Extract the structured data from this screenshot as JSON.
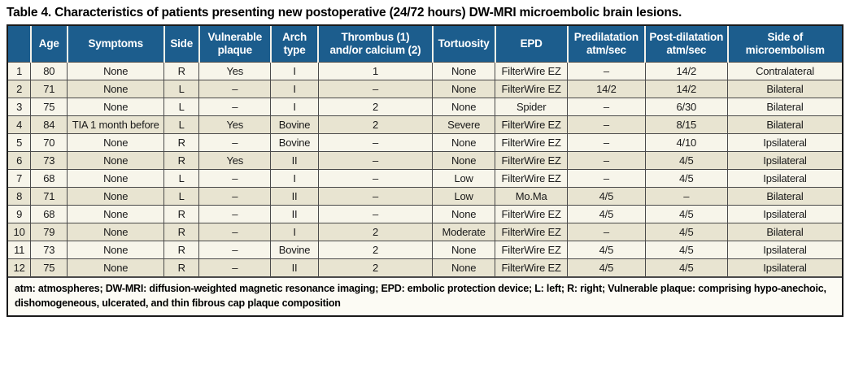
{
  "title": "Table 4. Characteristics of patients presenting new postoperative (24/72 hours) DW-MRI microembolic brain lesions.",
  "colors": {
    "header_bg": "#1c5d8d",
    "header_text": "#ffffff",
    "row_odd": "#f7f5ea",
    "row_even": "#e8e4d1",
    "grid": "#4a4a4a",
    "outer_border": "#1a1a1a"
  },
  "table": {
    "columns": [
      {
        "key": "row-number",
        "label": ""
      },
      {
        "key": "age",
        "label": "Age"
      },
      {
        "key": "symptoms",
        "label": "Symptoms"
      },
      {
        "key": "side",
        "label": "Side"
      },
      {
        "key": "vulnerable-plaque",
        "label": "Vulnerable\nplaque"
      },
      {
        "key": "arch-type",
        "label": "Arch\ntype"
      },
      {
        "key": "thrombus-calcium",
        "label": "Thrombus (1)\nand/or calcium (2)"
      },
      {
        "key": "tortuosity",
        "label": "Tortuosity"
      },
      {
        "key": "epd",
        "label": "EPD"
      },
      {
        "key": "predilatation",
        "label": "Predilatation\natm/sec"
      },
      {
        "key": "post-dilatation",
        "label": "Post-dilatation\natm/sec"
      },
      {
        "key": "side-of-microembolism",
        "label": "Side of\nmicroembolism"
      }
    ],
    "rows": [
      [
        "1",
        "80",
        "None",
        "R",
        "Yes",
        "I",
        "1",
        "None",
        "FilterWire EZ",
        "–",
        "14/2",
        "Contralateral"
      ],
      [
        "2",
        "71",
        "None",
        "L",
        "–",
        "I",
        "–",
        "None",
        "FilterWire EZ",
        "14/2",
        "14/2",
        "Bilateral"
      ],
      [
        "3",
        "75",
        "None",
        "L",
        "–",
        "I",
        "2",
        "None",
        "Spider",
        "–",
        "6/30",
        "Bilateral"
      ],
      [
        "4",
        "84",
        "TIA 1 month before",
        "L",
        "Yes",
        "Bovine",
        "2",
        "Severe",
        "FilterWire EZ",
        "–",
        "8/15",
        "Bilateral"
      ],
      [
        "5",
        "70",
        "None",
        "R",
        "–",
        "Bovine",
        "–",
        "None",
        "FilterWire EZ",
        "–",
        "4/10",
        "Ipsilateral"
      ],
      [
        "6",
        "73",
        "None",
        "R",
        "Yes",
        "II",
        "–",
        "None",
        "FilterWire EZ",
        "–",
        "4/5",
        "Ipsilateral"
      ],
      [
        "7",
        "68",
        "None",
        "L",
        "–",
        "I",
        "–",
        "Low",
        "FilterWire EZ",
        "–",
        "4/5",
        "Ipsilateral"
      ],
      [
        "8",
        "71",
        "None",
        "L",
        "–",
        "II",
        "–",
        "Low",
        "Mo.Ma",
        "4/5",
        "–",
        "Bilateral"
      ],
      [
        "9",
        "68",
        "None",
        "R",
        "–",
        "II",
        "–",
        "None",
        "FilterWire EZ",
        "4/5",
        "4/5",
        "Ipsilateral"
      ],
      [
        "10",
        "79",
        "None",
        "R",
        "–",
        "I",
        "2",
        "Moderate",
        "FilterWire EZ",
        "–",
        "4/5",
        "Bilateral"
      ],
      [
        "11",
        "73",
        "None",
        "R",
        "–",
        "Bovine",
        "2",
        "None",
        "FilterWire EZ",
        "4/5",
        "4/5",
        "Ipsilateral"
      ],
      [
        "12",
        "75",
        "None",
        "R",
        "–",
        "II",
        "2",
        "None",
        "FilterWire EZ",
        "4/5",
        "4/5",
        "Ipsilateral"
      ]
    ],
    "footnote": "atm: atmospheres; DW-MRI: diffusion-weighted magnetic resonance imaging; EPD: embolic protection device; L: left; R: right; Vulnerable plaque: comprising hypo-anechoic, dishomogeneous, ulcerated, and thin fibrous cap plaque composition"
  }
}
